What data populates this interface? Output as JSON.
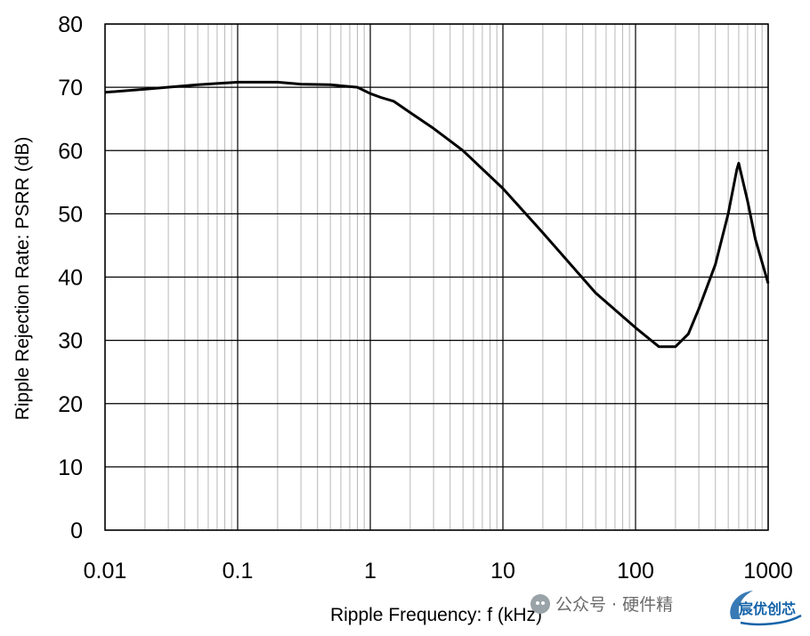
{
  "chart_data": {
    "type": "line",
    "title": "",
    "xlabel": "Ripple Frequency: f (kHz)",
    "ylabel": "Ripple Rejection Rate: PSRR (dB)",
    "xscale": "log",
    "xlim": [
      0.01,
      1000
    ],
    "ylim": [
      0,
      80
    ],
    "x_ticks": [
      "0.01",
      "0.1",
      "1",
      "10",
      "100",
      "1000"
    ],
    "y_ticks": [
      "0",
      "10",
      "20",
      "30",
      "40",
      "50",
      "60",
      "70",
      "80"
    ],
    "grid": "on (major and minor log gridlines)",
    "series": [
      {
        "x": [
          0.01,
          0.02,
          0.05,
          0.1,
          0.2,
          0.3,
          0.5,
          0.8,
          1,
          1.2,
          1.5,
          2,
          3,
          5,
          10,
          20,
          50,
          100,
          150,
          200,
          250,
          300,
          400,
          500,
          580,
          600,
          700,
          800,
          1000
        ],
        "y": [
          69.2,
          69.7,
          70.4,
          70.8,
          70.8,
          70.5,
          70.4,
          70.0,
          69.0,
          68.4,
          67.8,
          66.0,
          63.5,
          60.0,
          54.0,
          47.0,
          37.5,
          32.0,
          29.0,
          29.0,
          31.0,
          35.0,
          42.0,
          50.0,
          57.0,
          58.0,
          52.0,
          46.0,
          39.0
        ]
      }
    ]
  },
  "watermark": {
    "text": "公众号 · 硬件精",
    "logo_text": "宸优创芯"
  },
  "colors": {
    "line": "#000000",
    "grid": "#000000",
    "minor_grid": "#b8b8b8",
    "background": "#ffffff",
    "logo": "#1463a8"
  }
}
